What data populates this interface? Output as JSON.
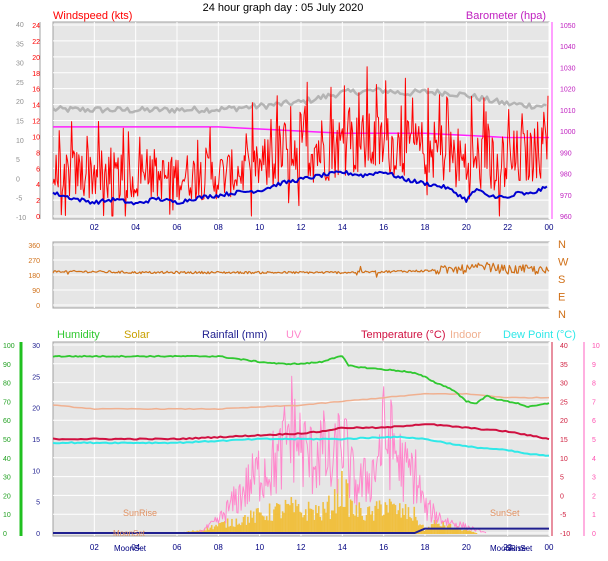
{
  "header": {
    "title": "24 hour graph day : 05 July 2020"
  },
  "colors": {
    "plot_bg": "#e6e6e6",
    "grid": "#ffffff",
    "wind": "#ff0000",
    "avg_wind": "#0000d0",
    "gust": "#b4b4b4",
    "baro": "#ff20ff",
    "dir": "#d07018",
    "humidity": "#30c830",
    "solar": "#f0c040",
    "rain": "#202090",
    "uv": "#ff88cc",
    "temp": "#d01040",
    "indoor": "#f0b090",
    "dew": "#30e8e8"
  },
  "chart_data": [
    {
      "type": "line",
      "panel": "wind",
      "labels": {
        "left": "Windspeed (kts)",
        "right": "Barometer (hpa)"
      },
      "x_ticks": [
        "02",
        "04",
        "06",
        "08",
        "10",
        "12",
        "14",
        "16",
        "18",
        "20",
        "22",
        "00"
      ],
      "x_range_hours": [
        0,
        24
      ],
      "left_axis_outer": {
        "range": [
          -10,
          40
        ],
        "ticks": [
          -10,
          -5,
          0,
          5,
          10,
          15,
          20,
          25,
          30,
          35,
          40
        ]
      },
      "left_axis_inner": {
        "range": [
          0,
          24
        ],
        "ticks": [
          0,
          2,
          4,
          6,
          8,
          10,
          12,
          14,
          16,
          18,
          20,
          22,
          24
        ]
      },
      "right_axis": {
        "range": [
          960,
          1050
        ],
        "ticks": [
          960,
          970,
          980,
          990,
          1000,
          1010,
          1020,
          1030,
          1040,
          1050
        ]
      },
      "series": [
        {
          "role": "wind_gust_grey",
          "x": [
            0,
            4,
            8,
            10,
            12,
            14,
            16,
            17,
            18,
            19,
            20,
            21,
            22,
            23,
            24
          ],
          "y": [
            13.4,
            13.3,
            13.4,
            13.8,
            14.3,
            15.5,
            15.8,
            15.4,
            15.6,
            15.5,
            15.2,
            14.6,
            14.1,
            13.9,
            13.8
          ]
        },
        {
          "role": "barometer",
          "x": [
            0,
            4,
            6,
            8,
            10,
            12,
            14,
            16,
            18,
            20,
            22,
            24
          ],
          "y": [
            1002,
            1002,
            1002,
            1002,
            1001,
            1000,
            999,
            999,
            999,
            998,
            997,
            997
          ]
        },
        {
          "role": "average_wind",
          "x": [
            0,
            1,
            2,
            3,
            4,
            5,
            6,
            7,
            8,
            9,
            10,
            11,
            12,
            13,
            14,
            15,
            16,
            17,
            18,
            19,
            19.5,
            20,
            20.5,
            21,
            21.5,
            22,
            22.5,
            23,
            23.5,
            24
          ],
          "y": [
            2.9,
            2.2,
            1.7,
            2.1,
            1.5,
            2.2,
            1.7,
            2.3,
            2.6,
            3.0,
            3.2,
            4.1,
            4.6,
            5.1,
            5.5,
            5.1,
            5.6,
            4.6,
            4.1,
            3.6,
            2.9,
            2.0,
            3.4,
            2.5,
            2.5,
            2.2,
            2.9,
            2.7,
            3.2,
            3.7
          ]
        },
        {
          "role": "wind_speed_envelope",
          "x": [
            0,
            2,
            4,
            6,
            8,
            10,
            11,
            12,
            13,
            14,
            15,
            16,
            17,
            18,
            19,
            20,
            21,
            22,
            23,
            24
          ],
          "y_low": [
            2,
            2,
            2,
            2,
            2,
            3,
            3,
            4,
            4,
            5,
            5,
            5,
            5,
            5,
            4,
            2,
            3,
            2,
            4,
            5
          ],
          "y_high": [
            8,
            9,
            7,
            8,
            8,
            9,
            12,
            14,
            13,
            13,
            13,
            13,
            12,
            12,
            12,
            11,
            11,
            11,
            11,
            12
          ],
          "y_peak": [
            15,
            12,
            11,
            12,
            12,
            15,
            17,
            20,
            18,
            19,
            22,
            20,
            18,
            17,
            17,
            16,
            15,
            15,
            14,
            18
          ]
        }
      ]
    },
    {
      "type": "line",
      "panel": "wind_direction",
      "labels": {
        "compass": [
          "N",
          "W",
          "S",
          "E",
          "N"
        ]
      },
      "x_range_hours": [
        0,
        24
      ],
      "y_axis": {
        "range": [
          0,
          360
        ],
        "ticks": [
          0,
          90,
          180,
          270,
          360
        ]
      },
      "series": [
        {
          "role": "direction",
          "x": [
            0,
            2,
            4,
            6,
            8,
            10,
            12,
            14,
            16,
            18,
            19,
            20,
            21,
            22,
            23,
            24
          ],
          "y": [
            200,
            200,
            195,
            195,
            195,
            195,
            195,
            195,
            200,
            205,
            210,
            215,
            230,
            210,
            215,
            200
          ]
        }
      ]
    },
    {
      "type": "line",
      "panel": "environment",
      "legend": [
        "Humidity",
        "Solar",
        "Rainfall (mm)",
        "UV",
        "Temperature (°C)",
        "Indoor",
        "Dew Point (°C)"
      ],
      "x_ticks": [
        "02",
        "04",
        "06",
        "08",
        "10",
        "12",
        "14",
        "16",
        "18",
        "20",
        "22",
        "00"
      ],
      "x_range_hours": [
        0,
        24
      ],
      "left_axis_outer": {
        "range": [
          0,
          100
        ],
        "ticks": [
          0,
          10,
          20,
          30,
          40,
          50,
          60,
          70,
          80,
          90,
          100
        ]
      },
      "left_axis_inner": {
        "range": [
          0,
          30
        ],
        "ticks": [
          0,
          5,
          10,
          15,
          20,
          25,
          30
        ]
      },
      "right_axis_inner": {
        "range": [
          -10,
          40
        ],
        "ticks": [
          -10,
          -5,
          0,
          5,
          10,
          15,
          20,
          25,
          30,
          35,
          40
        ]
      },
      "right_axis_outer": {
        "range": [
          0,
          10
        ],
        "ticks": [
          0,
          1,
          2,
          3,
          4,
          5,
          6,
          7,
          8,
          9,
          10
        ]
      },
      "annotations": [
        "SunRise",
        "SunSet",
        "MoonSet",
        "MoonSet",
        "MoonRise",
        "SunSet"
      ],
      "series": [
        {
          "role": "humidity_pct",
          "x": [
            0,
            2,
            4,
            6,
            8,
            10,
            11,
            12,
            13,
            13.5,
            14,
            14.3,
            15,
            16,
            17,
            17.5,
            18,
            18.5,
            19,
            19.5,
            20,
            20.5,
            21,
            21.5,
            22,
            22.5,
            23,
            23.5,
            24
          ],
          "y": [
            94,
            94,
            94,
            94,
            94,
            91,
            90,
            90,
            91,
            93,
            94,
            89,
            88,
            87,
            86,
            85,
            83,
            80,
            78,
            75,
            70,
            69,
            73,
            71,
            70,
            69,
            67,
            68,
            69
          ]
        },
        {
          "role": "temperature_c",
          "x": [
            0,
            2,
            4,
            6,
            8,
            10,
            12,
            13,
            14,
            15,
            16,
            17,
            18,
            19,
            20,
            21,
            22,
            23,
            24
          ],
          "y": [
            15,
            15,
            15,
            15,
            15.5,
            16,
            16.5,
            17,
            18,
            18,
            18,
            18.5,
            19,
            18.5,
            18,
            17.5,
            17,
            16,
            15
          ]
        },
        {
          "role": "indoor_c",
          "x": [
            0,
            2,
            4,
            6,
            8,
            10,
            12,
            14,
            16,
            17,
            18,
            19,
            20,
            21,
            22,
            23,
            24
          ],
          "y": [
            24,
            23,
            23,
            23,
            23,
            23.5,
            24,
            25,
            26,
            26.5,
            27,
            27,
            27,
            26.5,
            26,
            26,
            26
          ]
        },
        {
          "role": "dew_point_c",
          "x": [
            0,
            2,
            4,
            6,
            8,
            10,
            12,
            14,
            16,
            17,
            18,
            19,
            20,
            21,
            22,
            23,
            24
          ],
          "y": [
            14,
            14,
            14,
            14,
            14.5,
            15,
            15,
            15,
            15.5,
            15.5,
            15,
            14,
            13,
            12.5,
            12,
            11,
            10.5
          ]
        },
        {
          "role": "solar_envelope",
          "x": [
            6,
            7,
            8,
            9,
            10,
            11,
            11.5,
            12,
            12.5,
            13,
            13.5,
            14,
            14.5,
            15,
            15.5,
            16,
            16.5,
            17,
            17.5,
            18,
            18.5,
            19,
            20,
            20.5
          ],
          "y": [
            0,
            1,
            3,
            5,
            7,
            9,
            10,
            8,
            9,
            8,
            11,
            18,
            9,
            8,
            7,
            12,
            9,
            8,
            7,
            1,
            4,
            3,
            1,
            0
          ]
        },
        {
          "role": "uv_envelope",
          "x": [
            7,
            8,
            9,
            10,
            11,
            11.5,
            12,
            12.5,
            13,
            13.5,
            14,
            14.3,
            14.6,
            15,
            15.5,
            16,
            16.5,
            17,
            17.5,
            18,
            19,
            20,
            21
          ],
          "y": [
            0,
            1,
            3,
            5,
            6,
            9,
            7,
            6,
            7,
            5,
            8,
            5.5,
            4,
            4,
            5,
            8,
            7,
            5,
            5,
            2,
            1,
            0.5,
            0
          ]
        },
        {
          "role": "rainfall_mm",
          "x": [
            0,
            17.5,
            18,
            24
          ],
          "y": [
            0,
            0,
            0.7,
            0.7
          ]
        }
      ]
    }
  ]
}
